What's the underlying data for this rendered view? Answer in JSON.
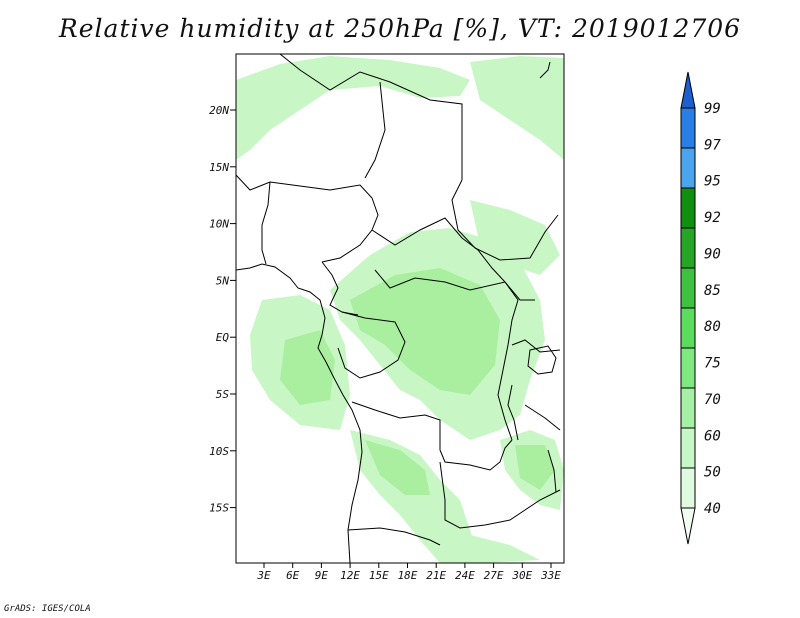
{
  "title": "Relative humidity at 250hPa [%], VT: 2019012706",
  "credit": "GrADS: IGES/COLA",
  "lat_labels": [
    "20N",
    "15N",
    "10N",
    "5N",
    "EQ",
    "5S",
    "10S",
    "15S"
  ],
  "lon_labels": [
    "3E",
    "6E",
    "9E",
    "12E",
    "15E",
    "18E",
    "21E",
    "24E",
    "27E",
    "30E",
    "33E"
  ],
  "colorbar": {
    "labels": [
      "99",
      "97",
      "95",
      "92",
      "90",
      "85",
      "80",
      "75",
      "70",
      "60",
      "50",
      "40"
    ],
    "colors": [
      "#1e5fd0",
      "#2a7fe6",
      "#4aa5ee",
      "#108f10",
      "#26a526",
      "#40c040",
      "#5cdc5c",
      "#80e880",
      "#a5f0a5",
      "#c6f7c6",
      "#e0fbe0",
      "#f2fef2"
    ]
  },
  "fill_colors": {
    "light": "#c9f6c5",
    "medium": "#a9ef9f"
  }
}
